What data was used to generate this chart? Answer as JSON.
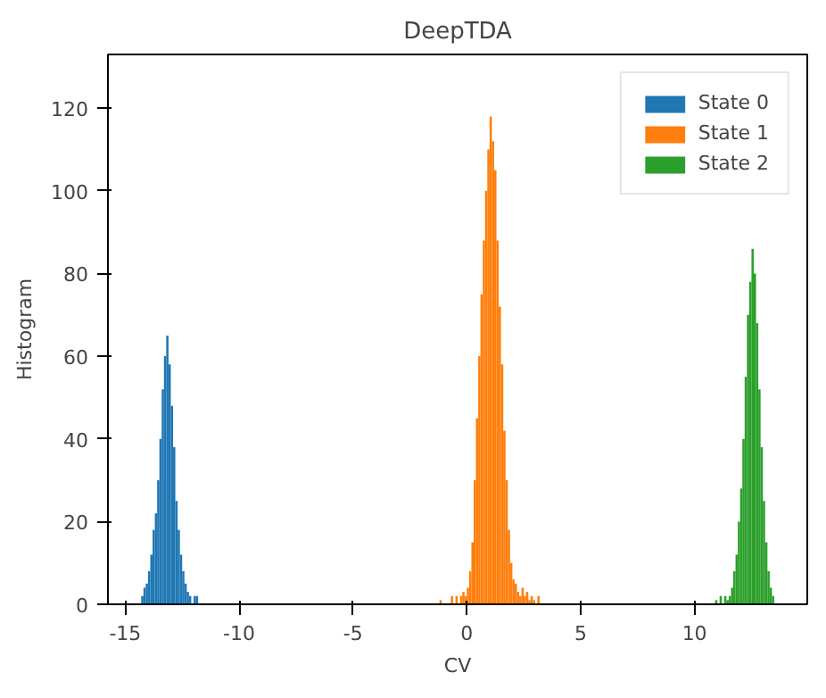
{
  "chart_data": {
    "type": "histogram",
    "title": "DeepTDA",
    "xlabel": "CV",
    "ylabel": "Histogram",
    "xlim": [
      -15.76,
      14.95
    ],
    "ylim": [
      0,
      133
    ],
    "xticks": [
      -15,
      -10,
      -5,
      0,
      5,
      10
    ],
    "yticks": [
      0,
      20,
      40,
      60,
      80,
      100,
      120
    ],
    "grid": false,
    "legend": "top right",
    "bins": [
      -14.3,
      -14.2,
      -14.1,
      -14.0,
      -13.9,
      -13.8,
      -13.7,
      -13.6,
      -13.5,
      -13.4,
      -13.3,
      -13.2,
      -13.1,
      -13.0,
      -12.9,
      -12.8,
      -12.7,
      -12.6,
      -12.5,
      -12.4,
      -12.3,
      -12.2,
      -12.1,
      -12.0,
      -11.9,
      -11.8,
      -1.2,
      -1.1,
      -0.7,
      -0.6,
      -0.5,
      -0.4,
      -0.3,
      -0.2,
      -0.1,
      0.0,
      0.1,
      0.2,
      0.3,
      0.4,
      0.5,
      0.6,
      0.7,
      0.8,
      0.9,
      1.0,
      1.1,
      1.2,
      1.3,
      1.4,
      1.5,
      1.6,
      1.7,
      1.8,
      1.9,
      2.0,
      2.1,
      2.2,
      2.3,
      2.4,
      2.5,
      2.6,
      2.7,
      2.8,
      2.9,
      3.0,
      3.1,
      3.2,
      10.9,
      11.0,
      11.1,
      11.2,
      11.3,
      11.4,
      11.5,
      11.6,
      11.7,
      11.8,
      11.9,
      12.0,
      12.1,
      12.2,
      12.3,
      12.4,
      12.5,
      12.6,
      12.7,
      12.8,
      12.9,
      13.0,
      13.1,
      13.2,
      13.3,
      13.4,
      13.5
    ],
    "series": [
      {
        "name": "State 0",
        "color": "#1f77b4",
        "values": [
          2,
          4,
          5,
          8,
          12,
          18,
          22,
          30,
          40,
          52,
          60,
          65,
          58,
          48,
          38,
          25,
          18,
          12,
          8,
          5,
          3,
          2,
          0,
          2,
          2,
          null,
          null,
          null,
          null,
          null,
          null,
          null,
          null,
          null,
          null,
          null,
          null,
          null,
          null,
          null,
          null,
          null,
          null,
          null,
          null,
          null,
          null,
          null,
          null,
          null,
          null,
          null,
          null,
          null,
          null,
          null,
          null,
          null,
          null,
          null,
          null,
          null,
          null,
          null,
          null,
          null,
          null,
          null,
          null,
          null,
          null,
          null,
          null,
          null,
          null,
          null,
          null,
          null,
          null,
          null,
          null,
          null,
          null,
          null,
          null,
          null,
          null,
          null,
          null,
          null,
          null,
          null,
          null,
          null
        ]
      },
      {
        "name": "State 1",
        "color": "#ff7f0e",
        "values": [
          null,
          null,
          null,
          null,
          null,
          null,
          null,
          null,
          null,
          null,
          null,
          null,
          null,
          null,
          null,
          null,
          null,
          null,
          null,
          null,
          null,
          null,
          null,
          null,
          null,
          null,
          1,
          0,
          2,
          0,
          2,
          0,
          2,
          3,
          2,
          4,
          8,
          15,
          30,
          45,
          60,
          75,
          88,
          100,
          110,
          118,
          112,
          105,
          88,
          72,
          58,
          42,
          30,
          18,
          10,
          6,
          5,
          3,
          2,
          4,
          2,
          3,
          1,
          2,
          1,
          0,
          2,
          null,
          null,
          null,
          null,
          null,
          null,
          null,
          null,
          null,
          null,
          null,
          null,
          null,
          null,
          null,
          null,
          null,
          null,
          null,
          null,
          null,
          null,
          null,
          null,
          null,
          null,
          null
        ]
      },
      {
        "name": "State 2",
        "color": "#2ca02c",
        "values": [
          null,
          null,
          null,
          null,
          null,
          null,
          null,
          null,
          null,
          null,
          null,
          null,
          null,
          null,
          null,
          null,
          null,
          null,
          null,
          null,
          null,
          null,
          null,
          null,
          null,
          null,
          null,
          null,
          null,
          null,
          null,
          null,
          null,
          null,
          null,
          null,
          null,
          null,
          null,
          null,
          null,
          null,
          null,
          null,
          null,
          null,
          null,
          null,
          null,
          null,
          null,
          null,
          null,
          null,
          null,
          null,
          null,
          null,
          null,
          null,
          null,
          null,
          null,
          null,
          null,
          null,
          null,
          null,
          1,
          0,
          2,
          0,
          2,
          1,
          2,
          4,
          8,
          12,
          20,
          28,
          40,
          55,
          70,
          78,
          86,
          80,
          68,
          52,
          38,
          25,
          15,
          8,
          4,
          2
        ]
      }
    ]
  }
}
